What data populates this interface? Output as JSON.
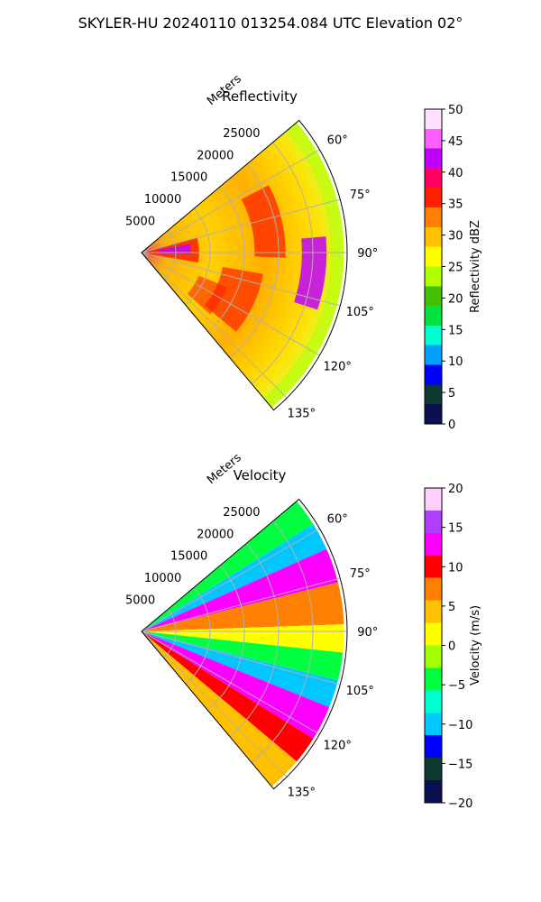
{
  "suptitle": "SKYLER-HU  20240110  013254.084 UTC Elevation 02°",
  "chart_data": [
    {
      "type": "heatmap",
      "projection": "polar-sector",
      "title": "Reflectivity",
      "radial_axis_label": "Meters",
      "radial_ticks": [
        5000,
        10000,
        15000,
        20000,
        25000
      ],
      "radial_tick_labels": [
        "5000",
        "10000",
        "15000",
        "20000",
        "25000"
      ],
      "r_max": 30000,
      "azimuth_range": [
        50,
        140
      ],
      "azimuth_ticks": [
        60,
        75,
        90,
        105,
        120,
        135
      ],
      "azimuth_tick_labels": [
        "60°",
        "75°",
        "90°",
        "105°",
        "120°",
        "135°"
      ],
      "grid": true,
      "colorbar": {
        "label": "Reflectivity dBZ",
        "min": 0,
        "max": 50,
        "ticks": [
          0,
          5,
          10,
          15,
          20,
          25,
          30,
          35,
          40,
          45,
          50
        ],
        "tick_labels": [
          "0",
          "5",
          "10",
          "15",
          "20",
          "25",
          "30",
          "35",
          "40",
          "45",
          "50"
        ],
        "stops": [
          "#0a1050",
          "#0c3a30",
          "#0000ff",
          "#00a0ff",
          "#00ffd0",
          "#00e040",
          "#40c000",
          "#b0ff00",
          "#ffff00",
          "#ffc000",
          "#ff8000",
          "#ff2000",
          "#ff0060",
          "#c000ff",
          "#ff60ff",
          "#ffe0ff"
        ]
      },
      "dominant_values_dBZ": {
        "background": 28,
        "bands": 36,
        "peak": 42,
        "edges": 22
      }
    },
    {
      "type": "heatmap",
      "projection": "polar-sector",
      "title": "Velocity",
      "radial_axis_label": "Meters",
      "radial_ticks": [
        5000,
        10000,
        15000,
        20000,
        25000
      ],
      "radial_tick_labels": [
        "5000",
        "10000",
        "15000",
        "20000",
        "25000"
      ],
      "r_max": 30000,
      "azimuth_range": [
        50,
        140
      ],
      "azimuth_ticks": [
        60,
        75,
        90,
        105,
        120,
        135
      ],
      "azimuth_tick_labels": [
        "60°",
        "75°",
        "90°",
        "105°",
        "120°",
        "135°"
      ],
      "grid": true,
      "colorbar": {
        "label": "Velocity (m/s)",
        "min": -20,
        "max": 20,
        "ticks": [
          -20,
          -15,
          -10,
          -5,
          0,
          5,
          10,
          15,
          20
        ],
        "tick_labels": [
          "−20",
          "−15",
          "−10",
          "−5",
          "0",
          "5",
          "10",
          "15",
          "20"
        ],
        "stops": [
          "#0a1050",
          "#0c3a30",
          "#0000ff",
          "#00c8ff",
          "#00ffd0",
          "#00ff40",
          "#a0ff00",
          "#ffff00",
          "#ffc000",
          "#ff8000",
          "#ff0000",
          "#ff00ff",
          "#b040ff",
          "#ffd0ff"
        ]
      },
      "azimuth_bands_m_s": [
        {
          "az_from": 50,
          "az_to": 58,
          "value": -5
        },
        {
          "az_from": 58,
          "az_to": 66,
          "value": -10
        },
        {
          "az_from": 66,
          "az_to": 76,
          "value": 14
        },
        {
          "az_from": 76,
          "az_to": 88,
          "value": 8
        },
        {
          "az_from": 88,
          "az_to": 96,
          "value": 2
        },
        {
          "az_from": 96,
          "az_to": 104,
          "value": -4
        },
        {
          "az_from": 104,
          "az_to": 112,
          "value": -10
        },
        {
          "az_from": 112,
          "az_to": 122,
          "value": 12
        },
        {
          "az_from": 122,
          "az_to": 130,
          "value": 9
        },
        {
          "az_from": 130,
          "az_to": 140,
          "value": 4
        }
      ]
    }
  ]
}
